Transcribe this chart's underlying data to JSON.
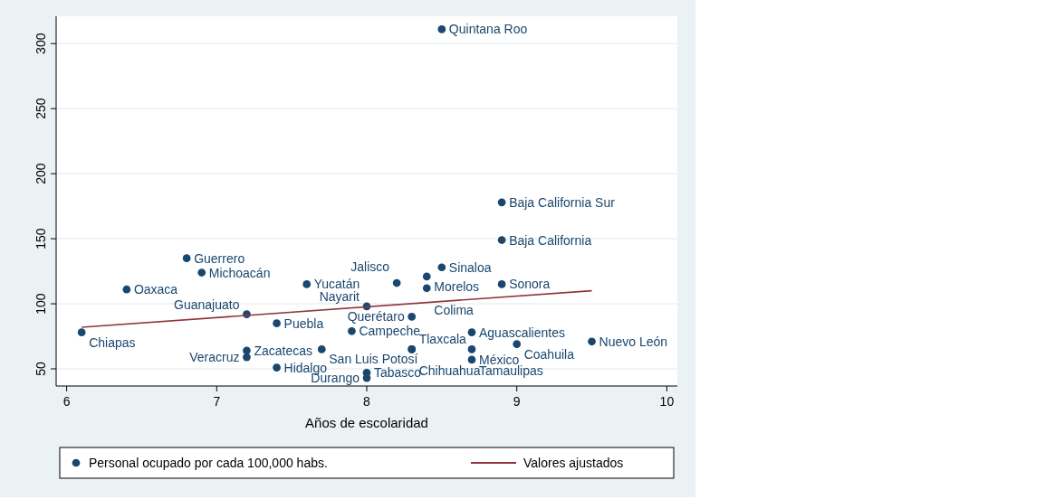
{
  "chart_data": {
    "type": "scatter",
    "xlabel": "Años de escolaridad",
    "xlim": [
      5.93,
      10.07
    ],
    "ylim": [
      36.8,
      321
    ],
    "xticks": [
      6,
      7,
      8,
      9,
      10
    ],
    "yticks": [
      50,
      100,
      150,
      200,
      250,
      300
    ],
    "grid": "y",
    "legend": "bottom",
    "marker": "circle",
    "series": [
      {
        "name": "Personal ocupado por cada 100,000 habs.",
        "color": "#1a476f",
        "x": [
          8.5,
          8.9,
          8.9,
          6.8,
          6.9,
          6.4,
          7.6,
          8.2,
          8.4,
          8.4,
          8.5,
          8.9,
          8.0,
          7.2,
          7.4,
          8.3,
          6.1,
          7.9,
          8.7,
          9.0,
          9.5,
          7.2,
          7.2,
          7.7,
          8.3,
          8.3,
          8.7,
          8.7,
          7.4,
          8.0,
          8.0
        ],
        "values": [
          311,
          178,
          149,
          135,
          124,
          111,
          115,
          116,
          121,
          112,
          128,
          115,
          98,
          92,
          85,
          90,
          78,
          79,
          78,
          69,
          71,
          64,
          59,
          65,
          65,
          65,
          65,
          57,
          51,
          47,
          43
        ],
        "value_labels": [
          "Quintana Roo",
          "Baja California Sur",
          "Baja California",
          "Guerrero",
          "Michoacán",
          "Oaxaca",
          "Yucatán",
          "Jalisco",
          "Morelos",
          "Colima",
          "Sinaloa",
          "Sonora",
          "Nayarit",
          "Guanajuato",
          "Puebla",
          "Querétaro",
          "Chiapas",
          "Campeche",
          "Aguascalientes",
          "Coahuila",
          "Nuevo León",
          "Zacatecas",
          "Veracruz",
          "San Luis Potosí",
          "Chihuahua",
          "Tlaxcala",
          "Tamaulipas",
          "México",
          "Hidalgo",
          "Tabasco",
          "Durango"
        ]
      },
      {
        "name": "Valores ajustados",
        "color": "#90353b",
        "type": "line",
        "marker": "none",
        "x": [
          6.1,
          9.5
        ],
        "values": [
          82,
          110
        ]
      }
    ]
  }
}
